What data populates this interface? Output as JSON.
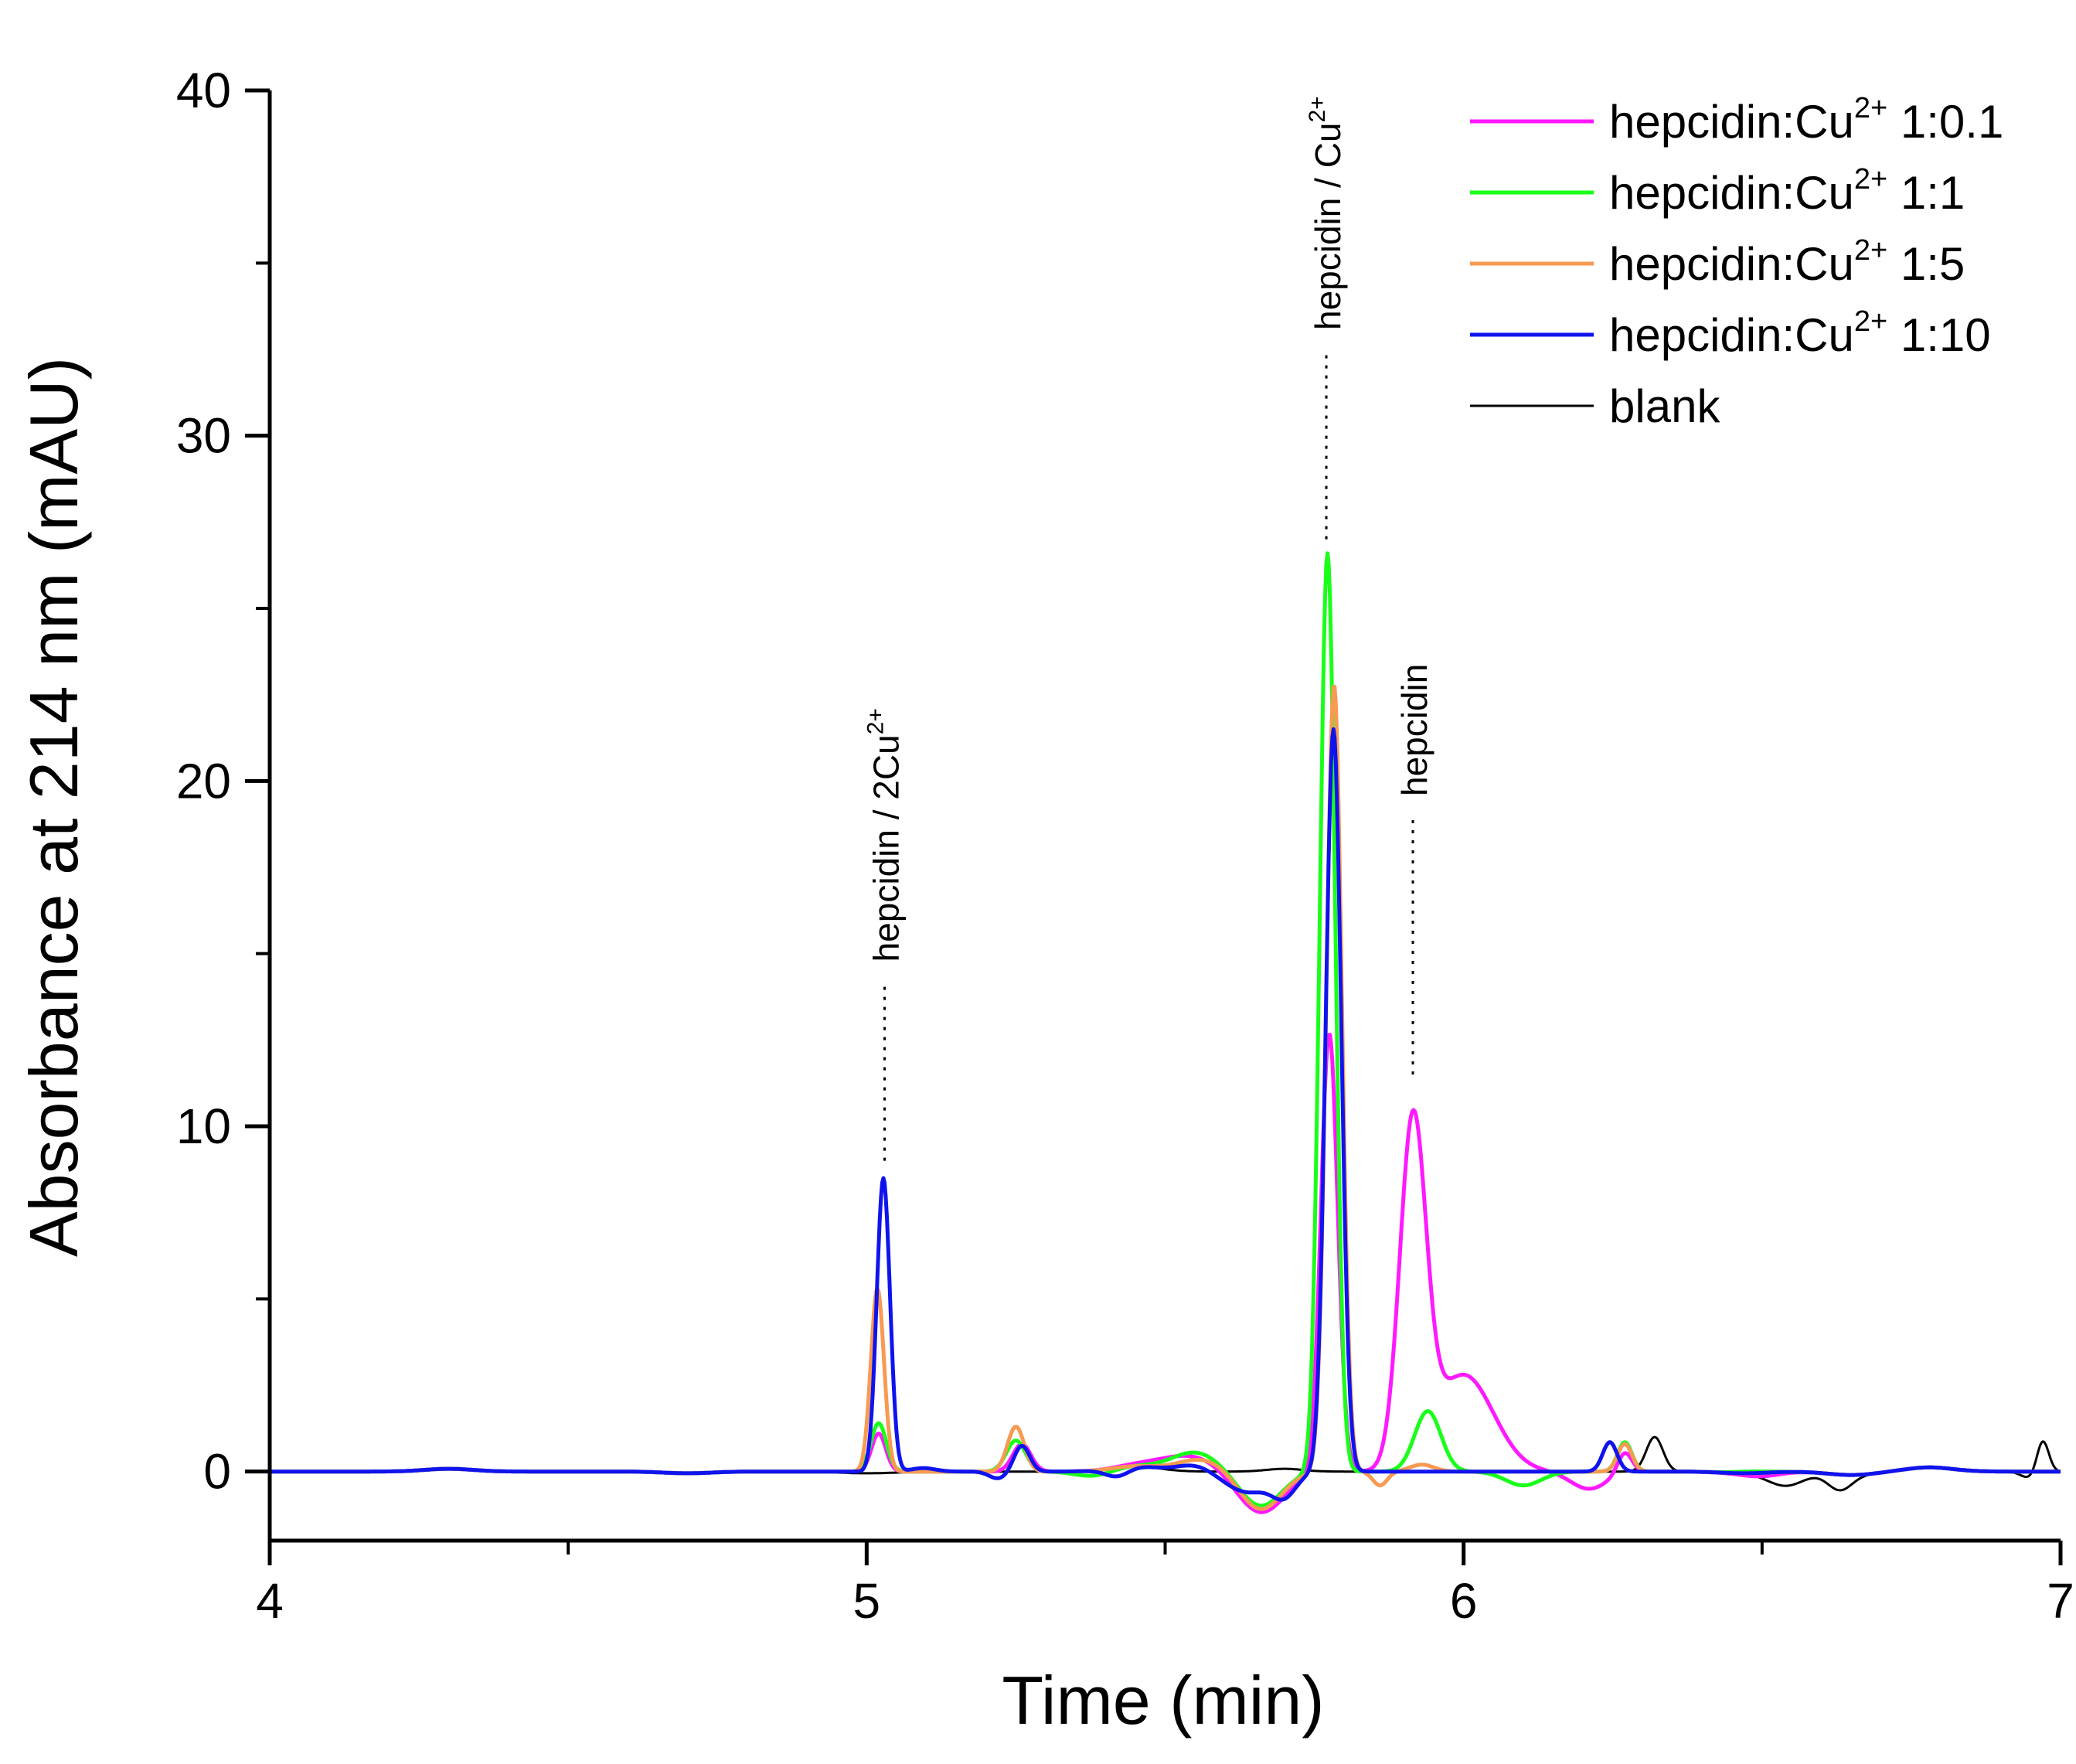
{
  "chart_data": {
    "type": "line",
    "title": "",
    "xlabel": "Time (min)",
    "ylabel": "Absorbance at 214 nm (mAU)",
    "xlim": [
      4,
      7
    ],
    "ylim": [
      -2,
      40
    ],
    "x_ticks": [
      {
        "value": 4,
        "label": "4"
      },
      {
        "value": 5,
        "label": "5"
      },
      {
        "value": 6,
        "label": "6"
      },
      {
        "value": 7,
        "label": "7"
      }
    ],
    "y_ticks": [
      {
        "value": 0,
        "label": "0"
      },
      {
        "value": 10,
        "label": "10"
      },
      {
        "value": 20,
        "label": "20"
      },
      {
        "value": 30,
        "label": "30"
      },
      {
        "value": 40,
        "label": "40"
      }
    ],
    "grid": false,
    "legend_position": "top-right",
    "baseline_noise": [
      [
        4.3,
        0.08
      ],
      [
        4.7,
        -0.05
      ],
      [
        5.45,
        0.15
      ],
      [
        6.47,
        -0.05
      ],
      [
        6.65,
        -0.1
      ],
      [
        6.78,
        0.12
      ]
    ],
    "series": [
      {
        "name": "hepcidin:Cu2+ 1:0.1",
        "legend_main": "hepcidin:Cu",
        "legend_sup": "2+",
        "legend_tail": " 1:0.1",
        "color": "#ff19ff",
        "peaks": [
          {
            "x": 5.02,
            "h": 1.1,
            "w": 0.012
          },
          {
            "x": 5.26,
            "h": 0.8,
            "w": 0.015
          },
          {
            "x": 5.54,
            "h": 0.45,
            "w": 0.05
          },
          {
            "x": 5.66,
            "h": -1.2,
            "w": 0.04
          },
          {
            "x": 5.775,
            "h": 12.7,
            "w": 0.014
          },
          {
            "x": 5.915,
            "h": 9.8,
            "w": 0.022
          },
          {
            "x": 6.0,
            "h": 2.8,
            "w": 0.05
          },
          {
            "x": 6.21,
            "h": -0.5,
            "w": 0.03
          },
          {
            "x": 6.27,
            "h": 0.6,
            "w": 0.012
          },
          {
            "x": 6.5,
            "h": -0.1,
            "w": 0.03
          }
        ]
      },
      {
        "name": "hepcidin:Cu2+ 1:1",
        "legend_main": "hepcidin:Cu",
        "legend_sup": "2+",
        "legend_tail": " 1:1",
        "color": "#19ff19",
        "peaks": [
          {
            "x": 5.02,
            "h": 1.4,
            "w": 0.013
          },
          {
            "x": 5.25,
            "h": 0.9,
            "w": 0.016
          },
          {
            "x": 5.38,
            "h": -0.15,
            "w": 0.03
          },
          {
            "x": 5.55,
            "h": 0.55,
            "w": 0.04
          },
          {
            "x": 5.66,
            "h": -1.0,
            "w": 0.035
          },
          {
            "x": 5.772,
            "h": 26.6,
            "w": 0.013
          },
          {
            "x": 5.94,
            "h": 1.75,
            "w": 0.022
          },
          {
            "x": 6.1,
            "h": -0.4,
            "w": 0.03
          },
          {
            "x": 6.27,
            "h": 0.85,
            "w": 0.012
          },
          {
            "x": 6.48,
            "h": 0.05,
            "w": 0.03
          }
        ]
      },
      {
        "name": "hepcidin:Cu2+ 1:5",
        "legend_main": "hepcidin:Cu",
        "legend_sup": "2+",
        "legend_tail": " 1:5",
        "color": "#f89a52",
        "peaks": [
          {
            "x": 5.018,
            "h": 5.3,
            "w": 0.011
          },
          {
            "x": 5.25,
            "h": 1.3,
            "w": 0.014
          },
          {
            "x": 5.56,
            "h": 0.35,
            "w": 0.04
          },
          {
            "x": 5.66,
            "h": -1.1,
            "w": 0.035
          },
          {
            "x": 5.783,
            "h": 22.8,
            "w": 0.013
          },
          {
            "x": 5.86,
            "h": -0.4,
            "w": 0.012
          },
          {
            "x": 5.93,
            "h": 0.2,
            "w": 0.02
          },
          {
            "x": 6.27,
            "h": 0.8,
            "w": 0.012
          }
        ]
      },
      {
        "name": "hepcidin:Cu2+ 1:10",
        "legend_main": "hepcidin:Cu",
        "legend_sup": "2+",
        "legend_tail": " 1:10",
        "color": "#0f14ee",
        "peaks": [
          {
            "x": 5.028,
            "h": 8.5,
            "w": 0.011
          },
          {
            "x": 5.095,
            "h": 0.1,
            "w": 0.02
          },
          {
            "x": 5.22,
            "h": -0.2,
            "w": 0.015
          },
          {
            "x": 5.26,
            "h": 0.75,
            "w": 0.013
          },
          {
            "x": 5.42,
            "h": -0.25,
            "w": 0.02
          },
          {
            "x": 5.55,
            "h": 0.2,
            "w": 0.03
          },
          {
            "x": 5.64,
            "h": -0.6,
            "w": 0.04
          },
          {
            "x": 5.7,
            "h": -0.6,
            "w": 0.02
          },
          {
            "x": 5.782,
            "h": 21.5,
            "w": 0.013
          },
          {
            "x": 6.245,
            "h": 0.85,
            "w": 0.012
          }
        ]
      },
      {
        "name": "blank",
        "legend_main": "blank",
        "legend_sup": "",
        "legend_tail": "",
        "color": "#000000",
        "thin": true,
        "peaks": [
          {
            "x": 5.0,
            "h": -0.05,
            "w": 0.05
          },
          {
            "x": 5.7,
            "h": 0.08,
            "w": 0.03
          },
          {
            "x": 6.32,
            "h": 1.0,
            "w": 0.014
          },
          {
            "x": 6.54,
            "h": -0.4,
            "w": 0.03
          },
          {
            "x": 6.63,
            "h": -0.45,
            "w": 0.02
          },
          {
            "x": 6.95,
            "h": -0.2,
            "w": 0.015
          },
          {
            "x": 6.97,
            "h": 0.95,
            "w": 0.01
          }
        ]
      }
    ],
    "annotations": [
      {
        "label_main": "hepcidin / 2Cu",
        "label_sup": "2+",
        "x": 5.03,
        "y_from": 9.0,
        "y_to": 14.2
      },
      {
        "label_main": "hepcidin / Cu",
        "label_sup": "2+",
        "x": 5.77,
        "y_from": 27.0,
        "y_to": 32.5
      },
      {
        "label_main": "hepcidin",
        "label_sup": "",
        "x": 5.915,
        "y_from": 11.5,
        "y_to": 19.0
      }
    ]
  }
}
